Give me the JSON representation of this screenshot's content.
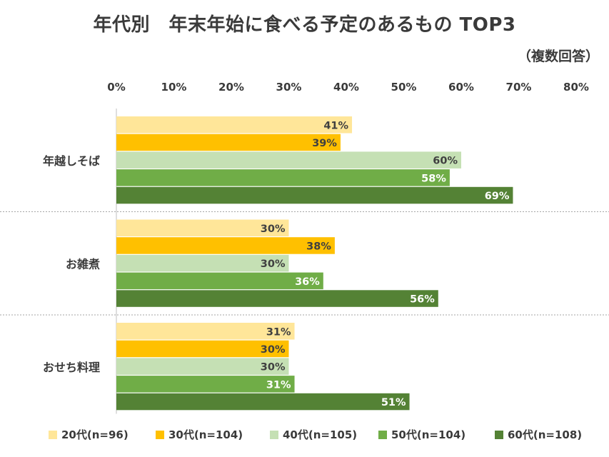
{
  "title": "年代別　年末年始に食べる予定のあるもの TOP3",
  "subtitle": "（複数回答）",
  "chart_data": {
    "type": "bar",
    "orientation": "horizontal",
    "title": "年代別　年末年始に食べる予定のあるもの TOP3",
    "subtitle": "（複数回答）",
    "categories": [
      "年越しそば",
      "お雑煮",
      "おせち料理"
    ],
    "series": [
      {
        "name": "20代(n=96)",
        "color": "#FFE699",
        "label_color": "#404040",
        "values": [
          41,
          30,
          31
        ]
      },
      {
        "name": "30代(n=104)",
        "color": "#FFC000",
        "label_color": "#404040",
        "values": [
          39,
          38,
          30
        ]
      },
      {
        "name": "40代(n=105)",
        "color": "#C5E0B4",
        "label_color": "#404040",
        "values": [
          60,
          30,
          30
        ]
      },
      {
        "name": "50代(n=104)",
        "color": "#70AD47",
        "label_color": "#ffffff",
        "values": [
          58,
          36,
          31
        ]
      },
      {
        "name": "60代(n=108)",
        "color": "#548235",
        "label_color": "#ffffff",
        "values": [
          69,
          56,
          51
        ]
      }
    ],
    "x_ticks": [
      "0%",
      "10%",
      "20%",
      "30%",
      "40%",
      "50%",
      "60%",
      "70%",
      "80%"
    ],
    "xlim": [
      0,
      80
    ],
    "value_suffix": "%",
    "legend_position": "bottom",
    "grid": false,
    "category_separators": "dotted"
  }
}
